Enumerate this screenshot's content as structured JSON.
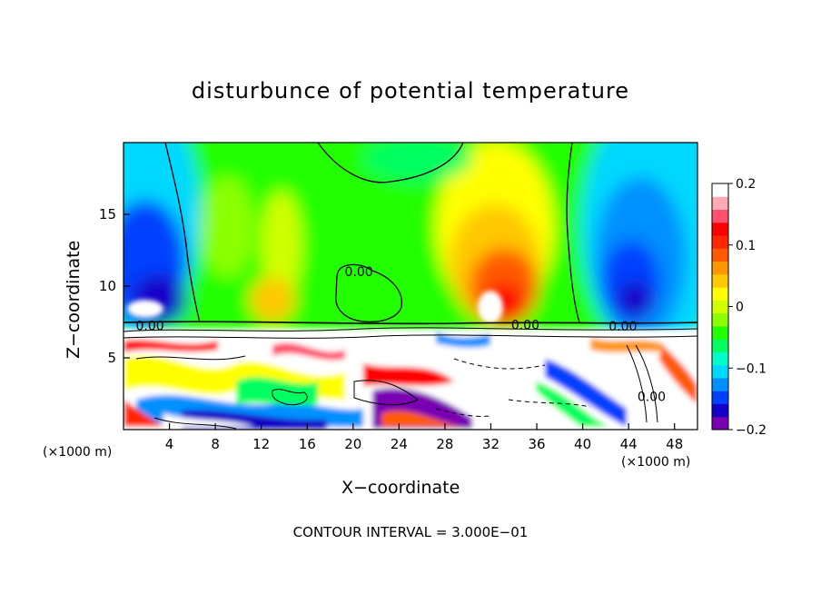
{
  "chart_data": {
    "type": "heatmap",
    "title": "disturbunce of potential temperature",
    "xlabel": "X−coordinate",
    "ylabel": "Z−coordinate",
    "x_unit_label_left": "(×1000 m)",
    "x_unit_label_right": "(×1000 m)",
    "xlim": [
      0,
      50
    ],
    "ylim": [
      0,
      20
    ],
    "x_ticks": [
      4,
      8,
      12,
      16,
      20,
      24,
      28,
      32,
      36,
      40,
      44,
      48
    ],
    "y_ticks": [
      5,
      10,
      15
    ],
    "colorbar": {
      "range": [
        -0.2,
        0.2
      ],
      "tick_values": [
        0.2,
        0.1,
        0,
        -0.1,
        -0.2
      ],
      "tick_labels": [
        "0.2",
        "0.1",
        "0",
        "−0.1",
        "−0.2"
      ],
      "colors": [
        "#7a00b4",
        "#1400c8",
        "#0040ff",
        "#0090ff",
        "#00d8ff",
        "#00ffc8",
        "#00ff60",
        "#22ff00",
        "#8cff00",
        "#d0ff00",
        "#ffff00",
        "#ffc800",
        "#ff9600",
        "#ff5a00",
        "#ff2800",
        "#ff0000",
        "#ff5070",
        "#ffaab4",
        "#ffffff"
      ]
    },
    "contour_labels": [
      {
        "text": "0.00",
        "x": 20.5,
        "z": 11.0
      },
      {
        "text": "0.00",
        "x": 2.3,
        "z": 7.25
      },
      {
        "text": "0.00",
        "x": 35.0,
        "z": 7.3
      },
      {
        "text": "0.00",
        "x": 43.5,
        "z": 7.2
      },
      {
        "text": "0.00",
        "x": 46.0,
        "z": 2.3
      }
    ],
    "annotation": "CONTOUR INTERVAL = 3.000E−01"
  }
}
